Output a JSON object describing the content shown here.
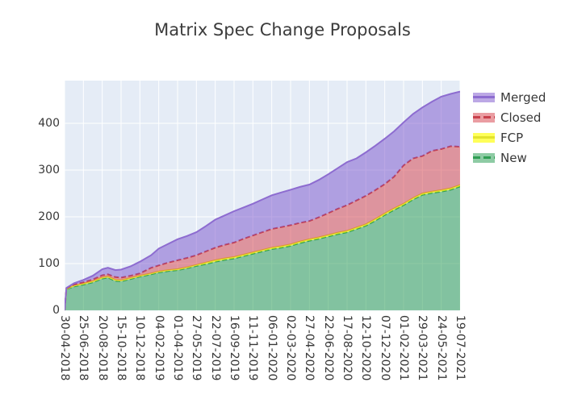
{
  "title": "Matrix Spec Change Proposals",
  "colors": {
    "plot_background": "#e5ecf6",
    "grid": "#ffffff",
    "text": "#383838",
    "title_text": "#3c3c3c"
  },
  "legend": {
    "position": "right",
    "items": [
      {
        "label": "Merged",
        "series": "Merged"
      },
      {
        "label": "Closed",
        "series": "Closed"
      },
      {
        "label": "FCP",
        "series": "FCP"
      },
      {
        "label": "New",
        "series": "New"
      }
    ]
  },
  "chart_data": {
    "type": "area",
    "stacked": true,
    "title": "Matrix Spec Change Proposals",
    "xlabel": "",
    "ylabel": "",
    "grid": true,
    "legend_position": "right",
    "y_ticks": [
      0,
      100,
      200,
      300,
      400
    ],
    "ylim": [
      0,
      491
    ],
    "x_tick_labels": [
      "30-04-2018",
      "25-06-2018",
      "20-08-2018",
      "15-10-2018",
      "10-12-2018",
      "04-02-2019",
      "01-04-2019",
      "27-05-2019",
      "22-07-2019",
      "16-09-2019",
      "11-11-2019",
      "06-01-2020",
      "02-03-2020",
      "27-04-2020",
      "22-06-2020",
      "17-08-2020",
      "12-10-2020",
      "07-12-2020",
      "01-02-2021",
      "29-03-2021",
      "24-05-2021",
      "19-07-2021"
    ],
    "x_tick_interval_days": 56,
    "t": [
      0,
      0.1,
      0.5,
      1,
      1.5,
      2,
      2.3,
      2.7,
      3,
      3.5,
      4,
      4.6,
      5,
      5.5,
      6,
      6.5,
      7,
      7.5,
      8,
      8.5,
      9,
      9.5,
      10,
      10.5,
      11,
      11.5,
      12,
      12.5,
      13,
      13.5,
      14,
      14.5,
      15,
      15.5,
      16,
      16.5,
      17,
      17.5,
      18,
      18.5,
      19,
      19.5,
      20,
      20.5,
      21
    ],
    "series": [
      {
        "name": "New",
        "fill": "rgba(50,160,90,0.55)",
        "line": "#2f9e53",
        "dash": "6 3",
        "values": [
          0,
          45,
          51,
          55,
          60,
          68,
          70,
          63,
          62,
          67,
          72,
          77,
          81,
          84,
          86,
          90,
          95,
          99,
          104,
          108,
          111,
          116,
          121,
          126,
          131,
          134,
          138,
          144,
          149,
          153,
          158,
          163,
          167,
          174,
          181,
          192,
          204,
          215,
          225,
          237,
          247,
          251,
          254,
          258,
          265
        ]
      },
      {
        "name": "FCP",
        "fill": "rgba(255,255,0,0.65)",
        "line": "#e3e32e",
        "dash": null,
        "values": [
          0,
          1,
          2,
          2,
          2,
          2,
          2,
          2,
          2,
          2,
          2,
          2,
          2,
          2,
          2,
          2,
          2,
          3,
          3,
          3,
          3,
          3,
          3,
          3,
          3,
          3,
          3,
          3,
          3,
          3,
          3,
          3,
          3,
          3,
          3,
          3,
          3,
          3,
          3,
          3,
          3,
          3,
          3,
          3,
          3
        ]
      },
      {
        "name": "Closed",
        "fill": "rgba(214,60,70,0.5)",
        "line": "#c8404b",
        "dash": "6 3",
        "values": [
          0,
          1,
          2,
          3,
          4,
          5,
          5,
          6,
          6,
          5,
          5,
          12,
          13,
          16,
          19,
          20,
          21,
          24,
          27,
          29,
          31,
          34,
          36,
          38,
          40,
          41,
          41,
          40,
          39,
          43,
          47,
          51,
          55,
          58,
          61,
          62,
          63,
          68,
          82,
          85,
          80,
          87,
          88,
          90,
          82
        ]
      },
      {
        "name": "Merged",
        "fill": "rgba(122,82,204,0.5)",
        "line": "#8d6cd0",
        "dash": null,
        "values": [
          0,
          1,
          3,
          5,
          8,
          13,
          14,
          15,
          17,
          20,
          25,
          27,
          36,
          40,
          45,
          47,
          49,
          54,
          60,
          63,
          67,
          67,
          68,
          70,
          72,
          74,
          76,
          77,
          78,
          80,
          83,
          87,
          92,
          90,
          93,
          95,
          97,
          97,
          92,
          95,
          104,
          105,
          112,
          112,
          118
        ]
      }
    ]
  }
}
